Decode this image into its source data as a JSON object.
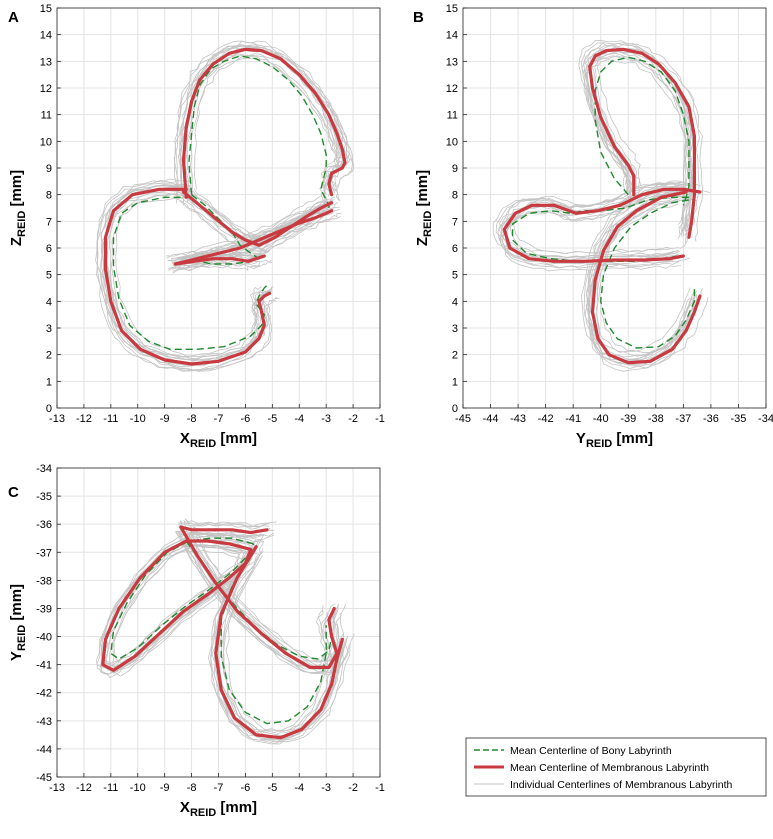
{
  "chart_data": [
    {
      "panel": "A",
      "type": "line",
      "xlabel_main": "X",
      "xlabel_sub": "REID",
      "xlabel_unit": " [mm]",
      "ylabel_main": "Z",
      "ylabel_sub": "REID",
      "ylabel_unit": " [mm]",
      "xlim": [
        -13,
        -1
      ],
      "ylim": [
        0,
        15
      ],
      "xticks": [
        -13,
        -12,
        -11,
        -10,
        -9,
        -8,
        -7,
        -6,
        -5,
        -4,
        -3,
        -2,
        -1
      ],
      "yticks": [
        0,
        1,
        2,
        3,
        4,
        5,
        6,
        7,
        8,
        9,
        10,
        11,
        12,
        13,
        14,
        15
      ],
      "grid": true,
      "series": [
        {
          "name": "Mean Centerline of Bony Labyrinth",
          "x": [
            -8.0,
            -8.1,
            -8.0,
            -7.9,
            -7.7,
            -7.3,
            -6.8,
            -6.2,
            -5.6,
            -5.0,
            -4.4,
            -3.9,
            -3.5,
            -3.2,
            -3.0,
            -3.0,
            -3.1,
            -3.2,
            -3.0,
            -2.9,
            -2.9
          ],
          "y": [
            8.0,
            9.2,
            10.3,
            11.3,
            12.1,
            12.7,
            13.0,
            13.2,
            13.1,
            12.8,
            12.3,
            11.7,
            11.0,
            10.3,
            9.5,
            9.0,
            8.6,
            8.2,
            7.8,
            7.6,
            7.5
          ]
        },
        {
          "name": "Mean Centerline of Bony Labyrinth",
          "x": [
            -8.0,
            -7.5,
            -7.0,
            -6.5,
            -6.2,
            -5.8,
            -5.5,
            -5.8,
            -6.5,
            -7.2,
            -7.8,
            -8.1,
            -8.0
          ],
          "y": [
            8.0,
            7.6,
            7.1,
            6.6,
            6.1,
            5.8,
            5.6,
            5.5,
            5.4,
            5.4,
            5.5,
            5.5,
            5.5
          ]
        },
        {
          "name": "Mean Centerline of Bony Labyrinth",
          "x": [
            -8.0,
            -9.0,
            -10.0,
            -10.6,
            -10.9,
            -10.9,
            -10.7,
            -10.3,
            -9.6,
            -8.8,
            -7.8,
            -6.8,
            -5.8,
            -5.4,
            -5.3,
            -5.6,
            -5.5,
            -5.3,
            -5.2
          ],
          "y": [
            7.9,
            7.9,
            7.7,
            7.3,
            6.4,
            5.3,
            4.1,
            3.1,
            2.5,
            2.2,
            2.2,
            2.3,
            2.7,
            3.1,
            3.5,
            3.9,
            4.2,
            4.5,
            4.6
          ]
        },
        {
          "name": "Mean Centerline of Membranous Labyrinth",
          "x": [
            -8.2,
            -8.3,
            -8.2,
            -8.0,
            -7.7,
            -7.2,
            -6.6,
            -6.0,
            -5.4,
            -4.7,
            -4.0,
            -3.4,
            -2.9,
            -2.6,
            -2.4,
            -2.3,
            -2.4,
            -2.8,
            -2.9,
            -2.8
          ],
          "y": [
            7.9,
            9.3,
            10.5,
            11.5,
            12.3,
            12.9,
            13.3,
            13.45,
            13.4,
            13.1,
            12.5,
            11.8,
            11.0,
            10.3,
            9.7,
            9.2,
            9.0,
            8.8,
            8.4,
            8.0
          ]
        },
        {
          "name": "Mean Centerline of Membranous Labyrinth",
          "x": [
            -8.3,
            -7.7,
            -7.1,
            -6.5,
            -6.0,
            -5.5,
            -4.9,
            -4.3,
            -3.7,
            -3.2,
            -2.8
          ],
          "y": [
            8.1,
            7.6,
            7.1,
            6.6,
            6.3,
            6.1,
            6.4,
            6.8,
            7.2,
            7.5,
            7.7
          ]
        },
        {
          "name": "Mean Centerline of Membranous Labyrinth",
          "x": [
            -8.6,
            -7.8,
            -7.0,
            -6.2,
            -5.5,
            -4.8,
            -4.1,
            -3.5,
            -3.0,
            -2.8
          ],
          "y": [
            5.4,
            5.6,
            5.8,
            6.0,
            6.3,
            6.6,
            6.9,
            7.1,
            7.3,
            7.4
          ]
        },
        {
          "name": "Mean Centerline of Membranous Labyrinth",
          "x": [
            -8.6,
            -7.9,
            -7.2,
            -6.5,
            -5.9,
            -5.6,
            -5.3
          ],
          "y": [
            5.4,
            5.5,
            5.6,
            5.6,
            5.5,
            5.6,
            5.7
          ]
        },
        {
          "name": "Mean Centerline of Membranous Labyrinth",
          "x": [
            -8.2,
            -9.2,
            -10.2,
            -10.9,
            -11.2,
            -11.2,
            -11.0,
            -10.6,
            -9.9,
            -9.0,
            -8.0,
            -7.0,
            -6.0,
            -5.5,
            -5.3,
            -5.4,
            -5.5,
            -5.3,
            -5.1
          ],
          "y": [
            8.2,
            8.2,
            8.0,
            7.4,
            6.4,
            5.2,
            4.0,
            2.9,
            2.2,
            1.8,
            1.65,
            1.75,
            2.1,
            2.6,
            3.1,
            3.6,
            4.0,
            4.2,
            4.3
          ]
        }
      ]
    },
    {
      "panel": "B",
      "type": "line",
      "xlabel_main": "Y",
      "xlabel_sub": "REID",
      "xlabel_unit": " [mm]",
      "ylabel_main": "Z",
      "ylabel_sub": "REID",
      "ylabel_unit": " [mm]",
      "xlim": [
        -45,
        -34
      ],
      "ylim": [
        0,
        15
      ],
      "xticks": [
        -45,
        -44,
        -43,
        -42,
        -41,
        -40,
        -39,
        -38,
        -37,
        -36,
        -35,
        -34
      ],
      "yticks": [
        0,
        1,
        2,
        3,
        4,
        5,
        6,
        7,
        8,
        9,
        10,
        11,
        12,
        13,
        14,
        15
      ],
      "grid": true,
      "series": [
        {
          "name": "Mean Centerline of Bony Labyrinth",
          "x": [
            -39.0,
            -39.5,
            -40.0,
            -40.2,
            -40.2,
            -40.0,
            -39.6,
            -39.0,
            -38.4,
            -37.8,
            -37.3,
            -37.0,
            -36.8,
            -36.8,
            -36.8,
            -36.9,
            -37.0
          ],
          "y": [
            8.0,
            8.6,
            9.6,
            10.8,
            11.9,
            12.6,
            13.0,
            13.15,
            13.0,
            12.6,
            11.9,
            11.0,
            10.0,
            9.0,
            8.3,
            7.9,
            7.6
          ]
        },
        {
          "name": "Mean Centerline of Bony Labyrinth",
          "x": [
            -36.8,
            -37.5,
            -38.3,
            -39.1,
            -39.9,
            -40.6,
            -41.1,
            -41.8,
            -42.6,
            -43.2,
            -43.2,
            -42.7,
            -41.8,
            -40.8,
            -39.8,
            -38.8,
            -37.8,
            -37.2
          ],
          "y": [
            7.9,
            7.9,
            7.8,
            7.5,
            7.4,
            7.4,
            7.3,
            7.4,
            7.3,
            6.9,
            6.3,
            5.8,
            5.6,
            5.5,
            5.5,
            5.5,
            5.6,
            5.7
          ]
        },
        {
          "name": "Mean Centerline of Bony Labyrinth",
          "x": [
            -36.8,
            -37.4,
            -38.2,
            -38.9,
            -39.5,
            -39.9,
            -40.0,
            -39.8,
            -39.4,
            -38.7,
            -37.9,
            -37.3,
            -36.9,
            -36.6,
            -36.6
          ],
          "y": [
            7.8,
            7.7,
            7.3,
            6.8,
            6.0,
            5.0,
            4.0,
            3.2,
            2.6,
            2.25,
            2.3,
            2.7,
            3.3,
            4.0,
            4.6
          ]
        },
        {
          "name": "Mean Centerline of Membranous Labyrinth",
          "x": [
            -38.8,
            -38.8,
            -39.0,
            -39.5,
            -40.0,
            -40.3,
            -40.4,
            -40.2,
            -39.8,
            -39.2,
            -38.5,
            -37.9,
            -37.3,
            -36.8,
            -36.6,
            -36.6,
            -36.6,
            -36.7,
            -36.8
          ],
          "y": [
            8.0,
            8.7,
            9.1,
            9.8,
            10.9,
            12.0,
            12.8,
            13.2,
            13.4,
            13.45,
            13.3,
            12.9,
            12.2,
            11.3,
            10.2,
            9.0,
            8.0,
            7.0,
            6.4
          ]
        },
        {
          "name": "Mean Centerline of Membranous Labyrinth",
          "x": [
            -36.4,
            -37.0,
            -37.7,
            -38.5,
            -39.3,
            -40.1,
            -40.9,
            -41.7,
            -42.5,
            -43.1,
            -43.5,
            -43.3,
            -42.6,
            -41.7,
            -40.6,
            -39.5,
            -38.4,
            -37.5,
            -37.0
          ],
          "y": [
            8.1,
            8.2,
            8.2,
            8.0,
            7.6,
            7.4,
            7.3,
            7.6,
            7.6,
            7.3,
            6.7,
            6.0,
            5.6,
            5.5,
            5.5,
            5.55,
            5.55,
            5.6,
            5.7
          ]
        },
        {
          "name": "Mean Centerline of Membranous Labyrinth",
          "x": [
            -36.9,
            -37.8,
            -38.7,
            -39.4,
            -39.9,
            -40.2,
            -40.3,
            -40.1,
            -39.7,
            -39.0,
            -38.2,
            -37.4,
            -36.9,
            -36.6,
            -36.4
          ],
          "y": [
            8.1,
            7.9,
            7.4,
            6.8,
            5.9,
            4.8,
            3.6,
            2.6,
            2.0,
            1.7,
            1.75,
            2.2,
            2.9,
            3.6,
            4.2
          ]
        }
      ]
    },
    {
      "panel": "C",
      "type": "line",
      "xlabel_main": "X",
      "xlabel_sub": "REID",
      "xlabel_unit": " [mm]",
      "ylabel_main": "Y",
      "ylabel_sub": "REID",
      "ylabel_unit": " [mm]",
      "xlim": [
        -13,
        -1
      ],
      "ylim": [
        -45,
        -34
      ],
      "xticks": [
        -13,
        -12,
        -11,
        -10,
        -9,
        -8,
        -7,
        -6,
        -5,
        -4,
        -3,
        -2,
        -1
      ],
      "yticks": [
        -45,
        -44,
        -43,
        -42,
        -41,
        -40,
        -39,
        -38,
        -37,
        -36,
        -35,
        -34
      ],
      "grid": true,
      "series": [
        {
          "name": "Mean Centerline of Bony Labyrinth",
          "x": [
            -5.7,
            -6.5,
            -7.3,
            -8.1,
            -8.9,
            -9.7,
            -10.4,
            -10.9,
            -11.0,
            -10.7,
            -10.0,
            -9.1,
            -8.2,
            -7.3,
            -6.5,
            -5.9,
            -5.7
          ],
          "y": [
            -36.7,
            -36.5,
            -36.5,
            -36.6,
            -37.0,
            -37.8,
            -38.8,
            -39.8,
            -40.6,
            -40.8,
            -40.4,
            -39.6,
            -38.9,
            -38.3,
            -37.7,
            -37.1,
            -36.7
          ]
        },
        {
          "name": "Mean Centerline of Bony Labyrinth",
          "x": [
            -8.2,
            -7.6,
            -7.0,
            -6.3,
            -5.6,
            -4.8,
            -4.0,
            -3.3,
            -2.9,
            -2.8
          ],
          "y": [
            -36.6,
            -37.4,
            -38.2,
            -39.0,
            -39.7,
            -40.3,
            -40.7,
            -40.8,
            -40.5,
            -40.0
          ]
        },
        {
          "name": "Mean Centerline of Bony Labyrinth",
          "x": [
            -5.9,
            -6.5,
            -6.9,
            -6.9,
            -6.6,
            -6.0,
            -5.2,
            -4.4,
            -3.7,
            -3.2,
            -3.0,
            -3.0
          ],
          "y": [
            -37.2,
            -38.2,
            -39.4,
            -40.7,
            -41.9,
            -42.7,
            -43.1,
            -43.0,
            -42.5,
            -41.6,
            -40.6,
            -39.6
          ]
        },
        {
          "name": "Mean Centerline of Membranous Labyrinth",
          "x": [
            -5.8,
            -6.6,
            -7.4,
            -8.2,
            -9.0,
            -9.9,
            -10.7,
            -11.2,
            -11.3,
            -10.9,
            -10.1,
            -9.2,
            -8.3,
            -7.4,
            -6.6,
            -6.0,
            -5.8
          ],
          "y": [
            -36.9,
            -36.7,
            -36.6,
            -36.6,
            -37.0,
            -37.9,
            -39.0,
            -40.1,
            -41.0,
            -41.2,
            -40.7,
            -39.9,
            -39.1,
            -38.5,
            -37.9,
            -37.4,
            -36.9
          ]
        },
        {
          "name": "Mean Centerline of Membranous Labyrinth",
          "x": [
            -5.2,
            -5.8,
            -6.5,
            -7.3,
            -8.0,
            -8.4,
            -7.8,
            -7.1,
            -6.3,
            -5.4,
            -4.5,
            -3.6,
            -2.9,
            -2.6,
            -2.8,
            -2.9,
            -2.7
          ],
          "y": [
            -36.2,
            -36.3,
            -36.2,
            -36.2,
            -36.2,
            -36.1,
            -37.1,
            -38.1,
            -39.1,
            -39.9,
            -40.6,
            -41.1,
            -41.1,
            -40.6,
            -40.0,
            -39.4,
            -39.0
          ]
        },
        {
          "name": "Mean Centerline of Membranous Labyrinth",
          "x": [
            -5.6,
            -6.3,
            -6.9,
            -7.1,
            -6.9,
            -6.4,
            -5.6,
            -4.7,
            -3.9,
            -3.2,
            -2.8,
            -2.6,
            -2.4
          ],
          "y": [
            -36.8,
            -37.9,
            -39.2,
            -40.6,
            -41.9,
            -42.9,
            -43.5,
            -43.6,
            -43.3,
            -42.6,
            -41.7,
            -40.8,
            -40.1
          ]
        }
      ]
    }
  ],
  "legend": {
    "placement": "bottom-right",
    "entries": [
      {
        "label": "Mean Centerline of Bony Labyrinth",
        "style": "dashed",
        "color": "#1f8a2e"
      },
      {
        "label": "Mean Centerline of Membranous Labyrinth",
        "style": "solid-thick",
        "color": "#c83a40"
      },
      {
        "label": "Individual Centerlines of Membranous Labyrinth",
        "style": "solid-thin",
        "color": "#c4c4c4"
      }
    ]
  },
  "colors": {
    "bony": "#1f8a2e",
    "membranous": "#c83a40",
    "individual": "#c4c4c4",
    "grid": "#e3e3e3"
  }
}
